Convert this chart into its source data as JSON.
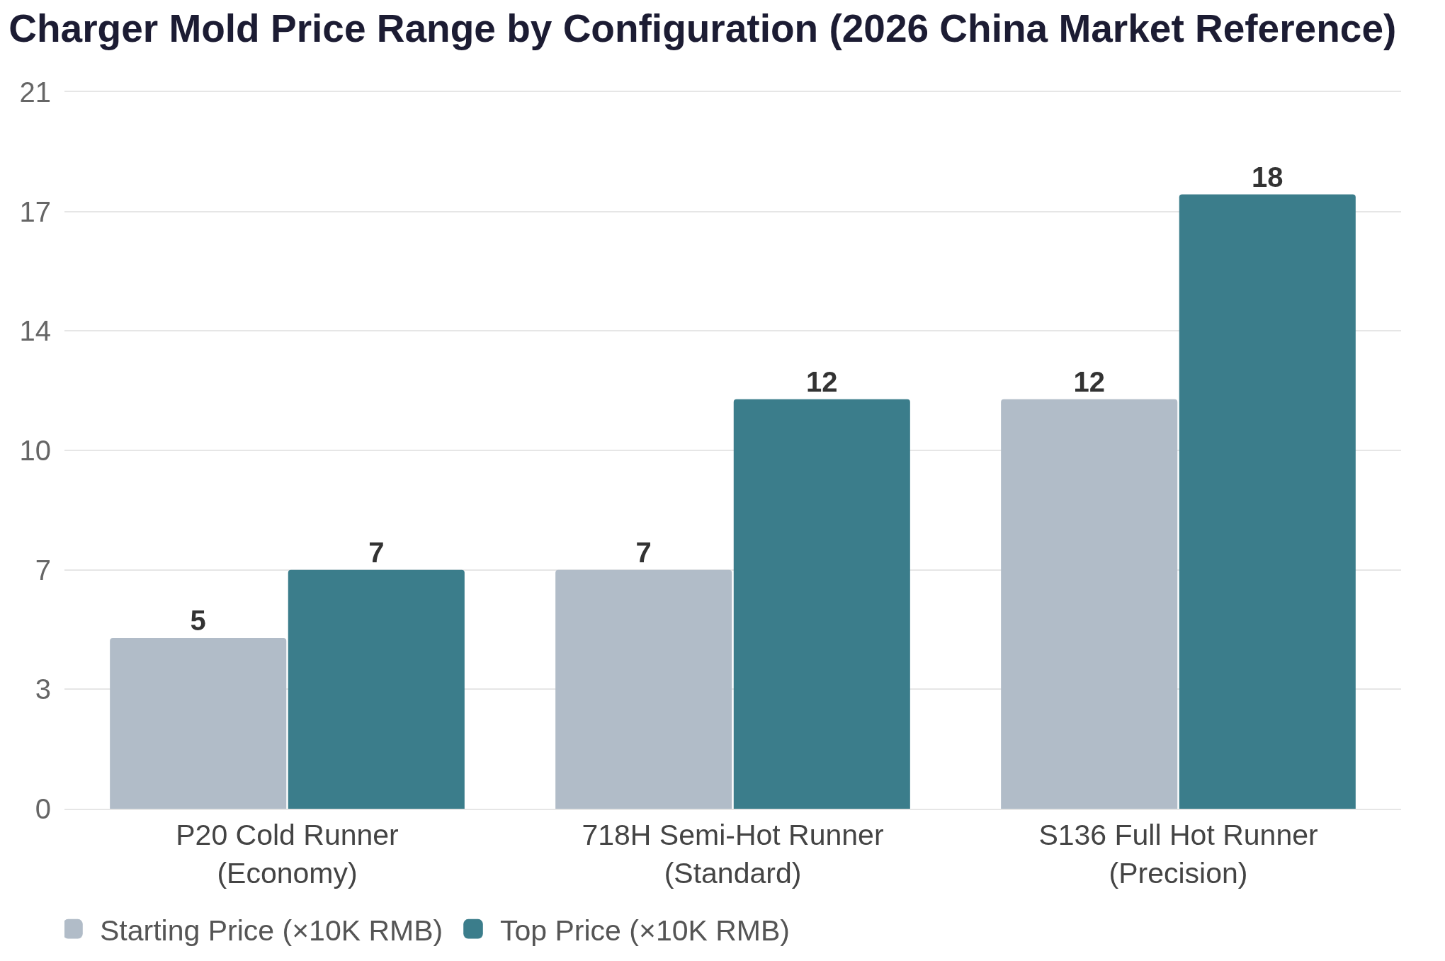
{
  "chart_data": {
    "type": "bar",
    "title": "Charger Mold Price Range by Configuration (2026 China Market Reference)",
    "categories": [
      "P20 Cold Runner\n(Economy)",
      "718H Semi-Hot Runner\n(Standard)",
      "S136 Full Hot Runner\n(Precision)"
    ],
    "series": [
      {
        "name": "Starting Price (×10K RMB)",
        "color": "#b1bcc8",
        "values": [
          5,
          7,
          12
        ]
      },
      {
        "name": "Top Price (×10K RMB)",
        "color": "#3b7d8b",
        "values": [
          7,
          12,
          18
        ]
      }
    ],
    "ylim": [
      0,
      21
    ],
    "yticks": [
      0,
      {
        "value": 3.5,
        "label": "3"
      },
      7,
      {
        "value": 10.5,
        "label": "10"
      },
      14,
      {
        "value": 17.5,
        "label": "17"
      },
      21
    ],
    "grid": "y",
    "legend": "bottom left",
    "data_labels": true
  }
}
